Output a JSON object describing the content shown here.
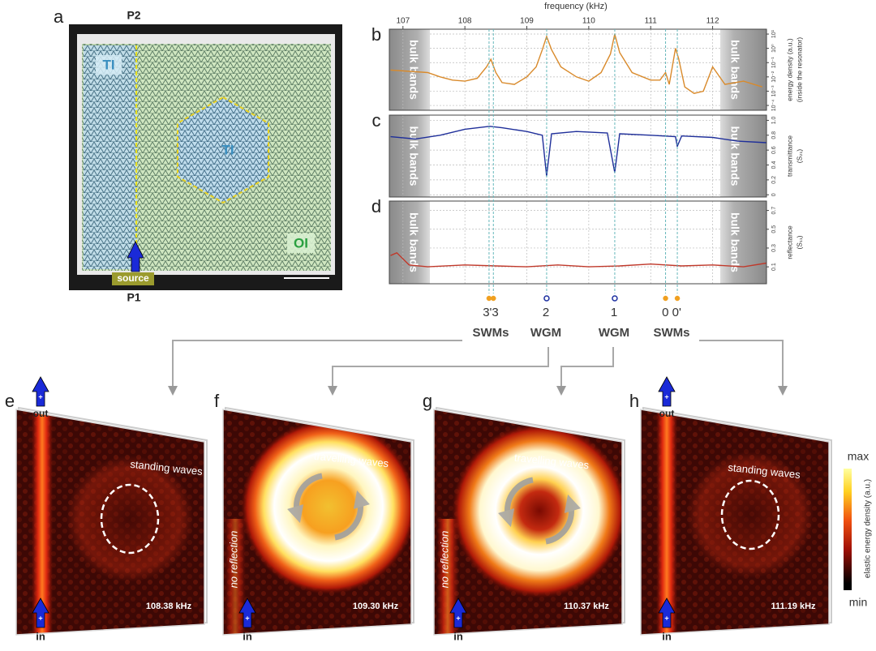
{
  "panel_a": {
    "label": "a",
    "top_port": "P2",
    "bottom_port": "P1",
    "region_left": "TI",
    "region_center": "TI",
    "region_outer": "OI",
    "source": "source"
  },
  "chart_data": [
    {
      "type": "line",
      "label": "b",
      "xlabel": "frequency (kHz)",
      "ylabel": [
        "energy density (a.u.)",
        "(inside the resonator)"
      ],
      "xlim": [
        106.78,
        112.87
      ],
      "xticks": [
        107,
        108,
        109,
        110,
        111,
        112
      ],
      "ylim": [
        4.6e-05,
        22
      ],
      "yscale": "log",
      "yticks": [
        {
          "value": 0.0001,
          "label": "10⁻⁴"
        },
        {
          "value": 0.001,
          "label": "10⁻³"
        },
        {
          "value": 0.01,
          "label": "10⁻²"
        },
        {
          "value": 0.1,
          "label": "10⁻¹"
        },
        {
          "value": 1,
          "label": "10⁰"
        },
        {
          "value": 10,
          "label": "10¹"
        }
      ],
      "grid": true,
      "bands": [
        "bulk bands",
        "bulk bands"
      ],
      "series": [
        {
          "color": "#d98a2b",
          "x": [
            106.8,
            107.4,
            107.6,
            107.8,
            108.0,
            108.2,
            108.35,
            108.42,
            108.5,
            108.6,
            108.8,
            109.0,
            109.15,
            109.25,
            109.32,
            109.4,
            109.55,
            109.8,
            110.0,
            110.2,
            110.35,
            110.42,
            110.5,
            110.7,
            111.0,
            111.15,
            111.24,
            111.3,
            111.4,
            111.45,
            111.55,
            111.7,
            111.85,
            112.0,
            112.2,
            112.5,
            112.8
          ],
          "values": [
            0.03,
            0.02,
            0.01,
            0.006,
            0.005,
            0.008,
            0.05,
            0.17,
            0.02,
            0.004,
            0.003,
            0.01,
            0.05,
            0.8,
            6.8,
            0.8,
            0.05,
            0.01,
            0.005,
            0.02,
            0.4,
            10,
            0.5,
            0.02,
            0.006,
            0.006,
            0.02,
            0.003,
            1,
            0.2,
            0.002,
            0.0007,
            0.001,
            0.05,
            0.003,
            0.005,
            0.002
          ]
        }
      ]
    },
    {
      "type": "line",
      "label": "c",
      "ylabel": [
        "transmittance",
        "(S₂₁)"
      ],
      "xlim": [
        106.78,
        112.87
      ],
      "ylim": [
        -0.03,
        1.07
      ],
      "yticks": [
        0,
        0.2,
        0.4,
        0.6,
        0.8,
        {
          "value": 1,
          "label": "1.0"
        }
      ],
      "grid": true,
      "bands": [
        "bulk bands",
        "bulk bands"
      ],
      "series": [
        {
          "color": "#1f2f9a",
          "x": [
            106.8,
            107.2,
            107.6,
            108.0,
            108.4,
            108.6,
            109.0,
            109.25,
            109.32,
            109.4,
            109.8,
            110.3,
            110.42,
            110.5,
            111.0,
            111.4,
            111.43,
            111.5,
            112.0,
            112.4,
            112.87
          ],
          "values": [
            0.78,
            0.75,
            0.8,
            0.88,
            0.92,
            0.9,
            0.85,
            0.8,
            0.25,
            0.82,
            0.85,
            0.83,
            0.3,
            0.82,
            0.8,
            0.78,
            0.65,
            0.79,
            0.77,
            0.72,
            0.7
          ]
        }
      ]
    },
    {
      "type": "line",
      "label": "d",
      "ylabel": [
        "reflectance",
        "(S₁₁)"
      ],
      "xlim": [
        106.78,
        112.87
      ],
      "ylim": [
        -0.08,
        0.8
      ],
      "yticks": [
        0.1,
        0.3,
        0.5,
        0.7
      ],
      "grid": true,
      "bands": [
        "bulk bands",
        "bulk bands"
      ],
      "series": [
        {
          "color": "#c0392b",
          "x": [
            106.8,
            106.9,
            107.1,
            107.4,
            108,
            108.5,
            109,
            109.5,
            110,
            110.5,
            111,
            111.5,
            112,
            112.5,
            112.87
          ],
          "values": [
            0.22,
            0.25,
            0.12,
            0.1,
            0.12,
            0.11,
            0.1,
            0.12,
            0.1,
            0.11,
            0.13,
            0.11,
            0.12,
            0.1,
            0.14
          ]
        }
      ]
    }
  ],
  "modes": {
    "colors": {
      "swm": "#f0a020",
      "wgm": "#1c2fa0"
    },
    "items": [
      {
        "x": 108.39,
        "style": "swm"
      },
      {
        "x": 108.46,
        "style": "swm"
      },
      {
        "x": 109.32,
        "style": "wgm"
      },
      {
        "x": 110.42,
        "style": "wgm"
      },
      {
        "x": 111.24,
        "style": "swm"
      },
      {
        "x": 111.43,
        "style": "swm"
      }
    ],
    "labels": [
      {
        "number": "3'3",
        "kind": "SWMs"
      },
      {
        "number": "2",
        "kind": "WGM"
      },
      {
        "number": "1",
        "kind": "WGM"
      },
      {
        "number": "0 0'",
        "kind": "SWMs"
      }
    ]
  },
  "maps": [
    {
      "label": "e",
      "frequency": "108.38 kHz",
      "wave_text": "standing waves",
      "out": "out",
      "in": "in"
    },
    {
      "label": "f",
      "frequency": "109.30 kHz",
      "wave_text": "travelling waves",
      "note": "no reflection",
      "in": "in"
    },
    {
      "label": "g",
      "frequency": "110.37 kHz",
      "wave_text": "travelling waves",
      "note": "no reflection",
      "in": "in"
    },
    {
      "label": "h",
      "frequency": "111.19 kHz",
      "wave_text": "standing waves",
      "out": "out",
      "in": "in"
    }
  ],
  "colorbar": {
    "max": "max",
    "min": "min",
    "label": "elastic energy density (a.u.)"
  }
}
